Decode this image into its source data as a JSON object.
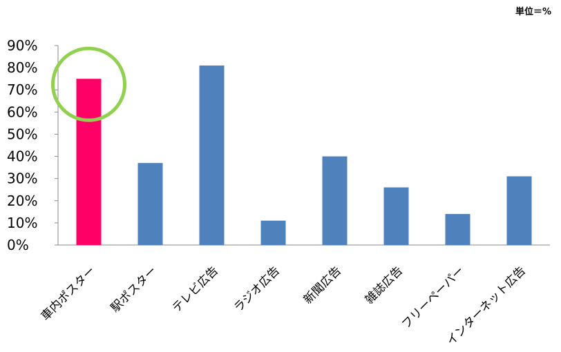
{
  "chart_data": {
    "type": "bar",
    "unit_label": "単位＝%",
    "categories": [
      "車内ポスター",
      "駅ポスター",
      "テレビ広告",
      "ラジオ広告",
      "新聞広告",
      "雑誌広告",
      "フリーペーパー",
      "インターネット広告"
    ],
    "values": [
      75,
      37,
      81,
      11,
      40,
      26,
      14,
      31
    ],
    "ylim": [
      0,
      90
    ],
    "yticks": [
      0,
      10,
      20,
      30,
      40,
      50,
      60,
      70,
      80,
      90
    ],
    "ytick_labels": [
      "0%",
      "10%",
      "20%",
      "30%",
      "40%",
      "50%",
      "60%",
      "70%",
      "80%",
      "90%"
    ],
    "grid": false,
    "legend": "none",
    "colors": {
      "default_bar": "#4f81bd",
      "highlight_bar": "#ff0066",
      "highlight_circle": "#92d050"
    },
    "highlight_index": 0
  }
}
